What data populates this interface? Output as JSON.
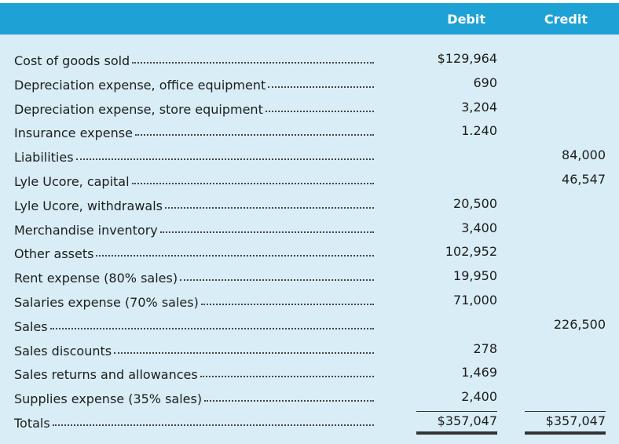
{
  "columns": {
    "debit": "Debit",
    "credit": "Credit"
  },
  "rows": [
    {
      "label": "Cost of goods sold",
      "debit": "$129,964",
      "credit": ""
    },
    {
      "label": "Depreciation expense, office equipment",
      "debit": "690",
      "credit": ""
    },
    {
      "label": "Depreciation expense, store equipment",
      "debit": "3,204",
      "credit": ""
    },
    {
      "label": "Insurance expense",
      "debit": "1.240",
      "credit": ""
    },
    {
      "label": "Liabilities",
      "debit": "",
      "credit": "84,000"
    },
    {
      "label": "Lyle Ucore, capital",
      "debit": "",
      "credit": "46,547"
    },
    {
      "label": "Lyle Ucore, withdrawals",
      "debit": "20,500",
      "credit": ""
    },
    {
      "label": "Merchandise inventory",
      "debit": "3,400",
      "credit": ""
    },
    {
      "label": "Other assets",
      "debit": "102,952",
      "credit": ""
    },
    {
      "label": "Rent expense (80% sales)",
      "debit": "19,950",
      "credit": ""
    },
    {
      "label": "Salaries expense (70% sales)",
      "debit": "71,000",
      "credit": ""
    },
    {
      "label": "Sales",
      "debit": "",
      "credit": "226,500"
    },
    {
      "label": "Sales discounts",
      "debit": "278",
      "credit": ""
    },
    {
      "label": "Sales returns and allowances",
      "debit": "1,469",
      "credit": ""
    },
    {
      "label": "Supplies expense (35% sales)",
      "debit": "2,400",
      "credit": ""
    }
  ],
  "totals": {
    "label": "Totals",
    "debit": "$357,047",
    "credit": "$357,047"
  },
  "colors": {
    "header_bg": "#1ea2d6",
    "body_bg": "#d8edf6"
  }
}
